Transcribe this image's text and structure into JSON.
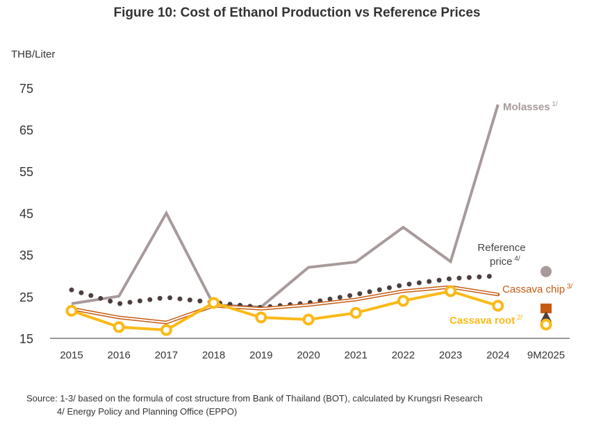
{
  "chart_data": {
    "type": "line",
    "title": "Figure 10: Cost of Ethanol Production vs Reference Prices",
    "ylabel": "THB/Liter",
    "ylim": [
      15,
      75
    ],
    "yticks": [
      15,
      25,
      35,
      45,
      55,
      65,
      75
    ],
    "categories": [
      "2015",
      "2016",
      "2017",
      "2018",
      "2019",
      "2020",
      "2021",
      "2022",
      "2023",
      "2024",
      "9M2025"
    ],
    "grid": false,
    "series": [
      {
        "name": "Molasses",
        "note": "1/",
        "color": "#a89a9a",
        "values": [
          23.3,
          25.1,
          45,
          23,
          22.5,
          32,
          33.3,
          41.6,
          33.4,
          71,
          31
        ]
      },
      {
        "name": "Reference price",
        "note": "4/",
        "color": "#4d3f3f",
        "values": [
          26.6,
          23.3,
          24.8,
          23.6,
          22.4,
          23.5,
          25.5,
          27.8,
          29.3,
          30,
          20
        ]
      },
      {
        "name": "Cassava chip",
        "note": "3/",
        "color": "#c55a11",
        "values": [
          22.1,
          20,
          18.8,
          22.8,
          22.1,
          23,
          24.3,
          26.3,
          27.3,
          25.5,
          22
        ]
      },
      {
        "name": "Cassava root",
        "note": "2/",
        "color": "#fbb917",
        "values": [
          21.6,
          17.7,
          17,
          23.5,
          20,
          19.5,
          21.1,
          24,
          26.3,
          22.8,
          18.3
        ]
      }
    ]
  },
  "source_line1": "Source: 1-3/ based on the formula of cost structure from Bank of Thailand (BOT), calculated by Krungsri Research",
  "source_line2": "4/ Energy Policy and Planning Office (EPPO)"
}
